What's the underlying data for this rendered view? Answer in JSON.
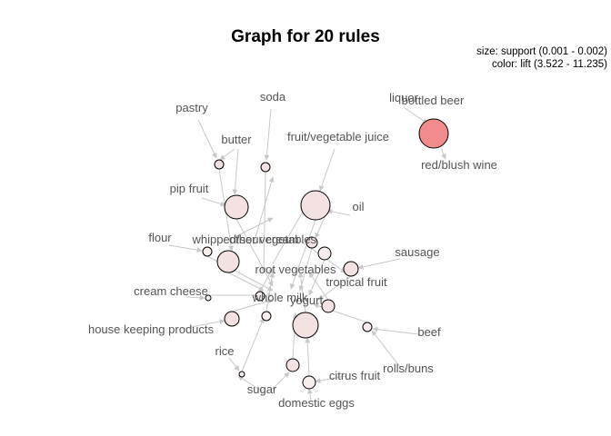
{
  "title": "Graph for 20 rules",
  "legend": {
    "size": "size: support (0.001 - 0.002)",
    "color": "color: lift (3.522 - 11.235)"
  },
  "colors": {
    "lift_low": "#f9eeee",
    "lift_mid": "#f4e2e2",
    "lift_high": "#f28b8b",
    "edge": "#c8c8c8",
    "label": "#555555"
  },
  "items": [
    "pastry",
    "soda",
    "liquor",
    "bottled beer",
    "butter",
    "fruit/vegetable juice",
    "red/blush wine",
    "pip fruit",
    "oil",
    "flour",
    "whipped/sour cream",
    "other vegetables",
    "sausage",
    "root vegetables",
    "cream cheese",
    "whole milk",
    "tropical fruit",
    "yogurt",
    "house keeping products",
    "beef",
    "rice",
    "citrus fruit",
    "rolls/buns",
    "sugar",
    "domestic eggs"
  ]
}
